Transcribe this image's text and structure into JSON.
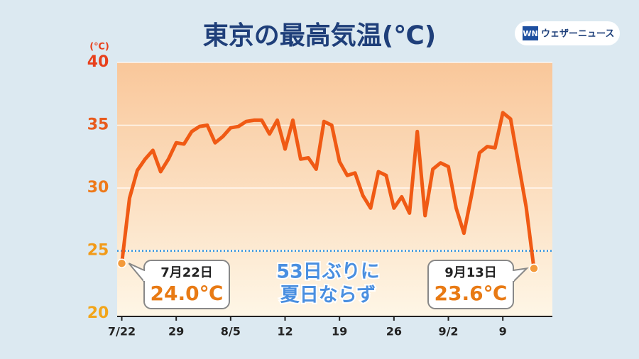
{
  "chart_data": {
    "type": "line",
    "title": "東京の最高気温(℃)",
    "y_unit": "(℃)",
    "brand": {
      "logo": "WN",
      "name": "ウェザーニュース"
    },
    "categories": [
      "7/22",
      null,
      null,
      null,
      null,
      null,
      null,
      "29",
      null,
      null,
      null,
      null,
      null,
      null,
      "8/5",
      null,
      null,
      null,
      null,
      null,
      null,
      "12",
      null,
      null,
      null,
      null,
      null,
      null,
      "19",
      null,
      null,
      null,
      null,
      null,
      null,
      "26",
      null,
      null,
      null,
      null,
      null,
      null,
      "9/2",
      null,
      null,
      null,
      null,
      null,
      null,
      "9",
      null,
      null,
      null,
      null
    ],
    "series": [
      {
        "name": "最高気温",
        "color": "#f05a14",
        "values": [
          24.0,
          29.2,
          31.4,
          32.3,
          33.0,
          31.3,
          32.3,
          33.6,
          33.5,
          34.5,
          34.9,
          35.0,
          33.6,
          34.1,
          34.8,
          34.9,
          35.3,
          35.4,
          35.4,
          34.3,
          35.4,
          33.1,
          35.4,
          32.3,
          32.4,
          31.5,
          35.3,
          35.0,
          32.1,
          31.0,
          31.2,
          29.4,
          28.4,
          31.3,
          31.0,
          28.4,
          29.3,
          28.0,
          34.5,
          27.8,
          31.5,
          32.0,
          31.7,
          28.4,
          26.4,
          29.5,
          32.8,
          33.3,
          33.2,
          36.0,
          35.5,
          32.0,
          28.5,
          23.6
        ]
      }
    ],
    "ylim": [
      20,
      40
    ],
    "yticks": [
      20,
      25,
      30,
      35,
      40
    ],
    "ytick_colors": [
      "#f2a51a",
      "#f29a18",
      "#ee7a1a",
      "#e85a1c",
      "#e8401c"
    ],
    "grid": true,
    "reference_line": {
      "value": 25,
      "color": "#4a9fe0"
    },
    "annotations": [
      {
        "index": 0,
        "date": "7月22日",
        "label": "24.0℃"
      },
      {
        "index": 53,
        "date": "9月13日",
        "label": "23.6℃"
      }
    ],
    "note": [
      "53日ぶりに",
      "夏日ならず"
    ]
  }
}
